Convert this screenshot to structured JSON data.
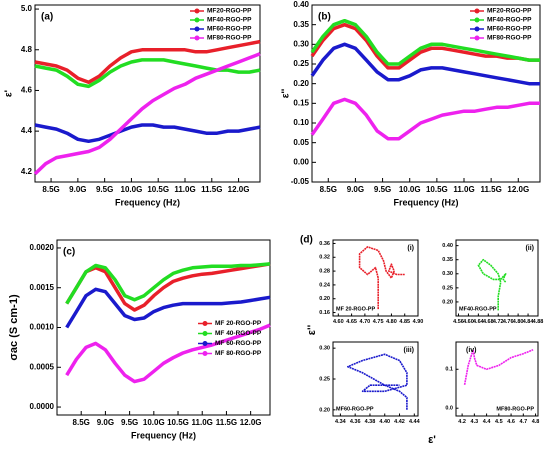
{
  "chart_data": [
    {
      "type": "line",
      "label": "(a)",
      "x_label": "Frequency (Hz)",
      "y_label": "ε'",
      "legend": "upper right",
      "x": [
        8200000000,
        8400000000,
        8600000000,
        8800000000,
        9000000000,
        9200000000,
        9400000000,
        9600000000,
        9800000000,
        10000000000,
        10200000000,
        10400000000,
        10600000000,
        10800000000,
        11000000000,
        11200000000,
        11400000000,
        11600000000,
        11800000000,
        12000000000,
        12200000000,
        12400000000
      ],
      "xlim": [
        8200000000,
        12400000000
      ],
      "xticks": [
        {
          "value": 8500000000,
          "label": "8.5G"
        },
        {
          "value": 9000000000,
          "label": "9.0G"
        },
        {
          "value": 9500000000,
          "label": "9.5G"
        },
        {
          "value": 10000000000,
          "label": "10.0G"
        },
        {
          "value": 10500000000,
          "label": "10.5G"
        },
        {
          "value": 11000000000,
          "label": "11.0G"
        },
        {
          "value": 11500000000,
          "label": "11.5G"
        },
        {
          "value": 12000000000,
          "label": "12.0G"
        }
      ],
      "ylim": [
        4.15,
        5.02
      ],
      "yticks": [
        4.2,
        4.4,
        4.6,
        4.8,
        {
          "value": 5.0,
          "label": "5.0"
        }
      ],
      "series": [
        {
          "name": "MF20-RGO-PP",
          "color": "#e8202a",
          "values": [
            4.74,
            4.73,
            4.72,
            4.7,
            4.66,
            4.64,
            4.67,
            4.72,
            4.76,
            4.79,
            4.8,
            4.8,
            4.8,
            4.8,
            4.8,
            4.79,
            4.79,
            4.8,
            4.81,
            4.82,
            4.83,
            4.84
          ]
        },
        {
          "name": "MF40-RGO-PP",
          "color": "#22dd22",
          "values": [
            4.72,
            4.71,
            4.7,
            4.67,
            4.63,
            4.62,
            4.65,
            4.69,
            4.72,
            4.74,
            4.75,
            4.75,
            4.75,
            4.74,
            4.73,
            4.72,
            4.71,
            4.7,
            4.7,
            4.69,
            4.69,
            4.7
          ]
        },
        {
          "name": "MF60-RGO-PP",
          "color": "#1a1acc",
          "values": [
            4.43,
            4.42,
            4.41,
            4.39,
            4.36,
            4.35,
            4.36,
            4.38,
            4.4,
            4.42,
            4.43,
            4.43,
            4.42,
            4.42,
            4.41,
            4.4,
            4.39,
            4.39,
            4.4,
            4.4,
            4.41,
            4.42
          ]
        },
        {
          "name": "MF80-RGO-PP",
          "color": "#ee22ee",
          "values": [
            4.19,
            4.24,
            4.27,
            4.28,
            4.29,
            4.3,
            4.32,
            4.36,
            4.41,
            4.46,
            4.51,
            4.55,
            4.58,
            4.61,
            4.63,
            4.66,
            4.68,
            4.7,
            4.72,
            4.74,
            4.76,
            4.78
          ]
        }
      ]
    },
    {
      "type": "line",
      "label": "(b)",
      "x_label": "Frequency (Hz)",
      "y_label": "ε''",
      "legend": "upper right",
      "x": [
        8200000000,
        8400000000,
        8600000000,
        8800000000,
        9000000000,
        9200000000,
        9400000000,
        9600000000,
        9800000000,
        10000000000,
        10200000000,
        10400000000,
        10600000000,
        10800000000,
        11000000000,
        11200000000,
        11400000000,
        11600000000,
        11800000000,
        12000000000,
        12200000000,
        12400000000
      ],
      "xlim": [
        8200000000,
        12400000000
      ],
      "xticks": [
        {
          "value": 8500000000,
          "label": "8.5G"
        },
        {
          "value": 9000000000,
          "label": "9.0G"
        },
        {
          "value": 9500000000,
          "label": "9.5G"
        },
        {
          "value": 10000000000,
          "label": "10.0G"
        },
        {
          "value": 10500000000,
          "label": "10.5G"
        },
        {
          "value": 11000000000,
          "label": "11.0G"
        },
        {
          "value": 11500000000,
          "label": "11.5G"
        },
        {
          "value": 12000000000,
          "label": "12.0G"
        }
      ],
      "ylim": [
        -0.05,
        0.4
      ],
      "yticks": [
        -0.05,
        {
          "value": 0,
          "label": "0.00"
        },
        0.05,
        {
          "value": 0.1,
          "label": "0.10"
        },
        0.15,
        {
          "value": 0.2,
          "label": "0.20"
        },
        0.25,
        {
          "value": 0.3,
          "label": "0.30"
        },
        0.35,
        {
          "value": 0.4,
          "label": "0.40"
        }
      ],
      "series": [
        {
          "name": "MF20-RGO-PP",
          "color": "#e8202a",
          "values": [
            0.27,
            0.31,
            0.34,
            0.35,
            0.34,
            0.31,
            0.27,
            0.24,
            0.24,
            0.26,
            0.28,
            0.29,
            0.29,
            0.285,
            0.28,
            0.275,
            0.27,
            0.27,
            0.265,
            0.265,
            0.26,
            0.26
          ]
        },
        {
          "name": "MF40-RGO-PP",
          "color": "#22dd22",
          "values": [
            0.28,
            0.32,
            0.35,
            0.36,
            0.35,
            0.32,
            0.28,
            0.25,
            0.25,
            0.27,
            0.29,
            0.3,
            0.3,
            0.295,
            0.29,
            0.285,
            0.28,
            0.275,
            0.27,
            0.265,
            0.26,
            0.26
          ]
        },
        {
          "name": "MF60-RGO-PP",
          "color": "#1a1acc",
          "values": [
            0.22,
            0.26,
            0.29,
            0.3,
            0.29,
            0.26,
            0.23,
            0.21,
            0.21,
            0.22,
            0.235,
            0.24,
            0.24,
            0.235,
            0.23,
            0.225,
            0.22,
            0.215,
            0.21,
            0.205,
            0.2,
            0.2
          ]
        },
        {
          "name": "MF80-RGO-PP",
          "color": "#ee22ee",
          "values": [
            0.07,
            0.11,
            0.15,
            0.16,
            0.15,
            0.12,
            0.08,
            0.06,
            0.06,
            0.08,
            0.1,
            0.11,
            0.12,
            0.125,
            0.13,
            0.13,
            0.135,
            0.14,
            0.14,
            0.145,
            0.15,
            0.15
          ]
        }
      ]
    },
    {
      "type": "line",
      "label": "(c)",
      "x_label": "Frequency (Hz)",
      "y_label": "σac (S cm-1)",
      "legend": "right",
      "x": [
        8200000000,
        8400000000,
        8600000000,
        8800000000,
        9000000000,
        9200000000,
        9400000000,
        9600000000,
        9800000000,
        10000000000,
        10200000000,
        10400000000,
        10600000000,
        10800000000,
        11000000000,
        11200000000,
        11400000000,
        11600000000,
        11800000000,
        12000000000,
        12200000000,
        12400000000
      ],
      "xlim": [
        8000000000,
        12400000000
      ],
      "xticks": [
        {
          "value": 8500000000,
          "label": "8.5G"
        },
        {
          "value": 9000000000,
          "label": "9.0G"
        },
        {
          "value": 9500000000,
          "label": "9.5G"
        },
        {
          "value": 10000000000,
          "label": "10.0G"
        },
        {
          "value": 10500000000,
          "label": "10.5G"
        },
        {
          "value": 11000000000,
          "label": "11.0G"
        },
        {
          "value": 11500000000,
          "label": "11.5G"
        },
        {
          "value": 12000000000,
          "label": "12.0G"
        }
      ],
      "ylim": [
        -0.0001,
        0.0021
      ],
      "yticks": [
        {
          "value": 0,
          "label": "0.0000"
        },
        {
          "value": 0.0005,
          "label": "0.0005"
        },
        {
          "value": 0.001,
          "label": "0.0010"
        },
        {
          "value": 0.0015,
          "label": "0.0015"
        },
        {
          "value": 0.002,
          "label": "0.0020"
        }
      ],
      "series": [
        {
          "name": "MF 20-RGO-PP",
          "color": "#e8202a",
          "values": [
            0.0013,
            0.0015,
            0.0017,
            0.00175,
            0.0017,
            0.0015,
            0.0013,
            0.00122,
            0.00128,
            0.0014,
            0.0015,
            0.00158,
            0.00162,
            0.00165,
            0.00167,
            0.00168,
            0.0017,
            0.00172,
            0.00174,
            0.00176,
            0.00178,
            0.0018
          ]
        },
        {
          "name": "MF 40-RGO-PP",
          "color": "#22dd22",
          "values": [
            0.0013,
            0.0015,
            0.0017,
            0.00178,
            0.00175,
            0.0016,
            0.0014,
            0.00135,
            0.0014,
            0.0015,
            0.0016,
            0.00168,
            0.00172,
            0.00175,
            0.00176,
            0.00177,
            0.00177,
            0.00177,
            0.00178,
            0.00178,
            0.00179,
            0.0018
          ]
        },
        {
          "name": "MF 60-RGO-PP",
          "color": "#1a1acc",
          "values": [
            0.001,
            0.0012,
            0.0014,
            0.00148,
            0.00145,
            0.0013,
            0.00115,
            0.0011,
            0.00112,
            0.0012,
            0.00125,
            0.00128,
            0.0013,
            0.0013,
            0.0013,
            0.0013,
            0.0013,
            0.00131,
            0.00132,
            0.00134,
            0.00136,
            0.00138
          ]
        },
        {
          "name": "MF 80-RGO-PP",
          "color": "#ee22ee",
          "values": [
            0.0004,
            0.0006,
            0.00075,
            0.0008,
            0.00072,
            0.00055,
            0.0004,
            0.00032,
            0.00035,
            0.00045,
            0.00055,
            0.00062,
            0.00068,
            0.00072,
            0.00075,
            0.00078,
            0.00082,
            0.00086,
            0.0009,
            0.00094,
            0.00098,
            0.00103
          ]
        }
      ]
    },
    {
      "type": "line",
      "label": "(i)",
      "legend": "lower left",
      "x": [
        4.75,
        4.75,
        4.75,
        4.74,
        4.71,
        4.68,
        4.68,
        4.71,
        4.75,
        4.77,
        4.78,
        4.8,
        4.81,
        4.8,
        4.79,
        4.82,
        4.85
      ],
      "xlim": [
        4.58,
        4.9
      ],
      "xticks": [
        {
          "value": 4.6,
          "label": "4.60"
        },
        4.65,
        {
          "value": 4.7,
          "label": "4.70"
        },
        4.75,
        {
          "value": 4.8,
          "label": "4.80"
        },
        4.85,
        {
          "value": 4.9,
          "label": "4.90"
        }
      ],
      "ylim": [
        0.15,
        0.37
      ],
      "yticks": [
        0.16,
        {
          "value": 0.2,
          "label": "0.20"
        },
        0.24,
        0.28,
        0.32,
        0.36
      ],
      "series": [
        {
          "name": "MF 20-RGO-PP",
          "color": "#e8202a",
          "values": [
            0.17,
            0.22,
            0.26,
            0.29,
            0.27,
            0.29,
            0.33,
            0.35,
            0.34,
            0.31,
            0.28,
            0.26,
            0.28,
            0.3,
            0.28,
            0.27,
            0.27
          ]
        }
      ]
    },
    {
      "type": "line",
      "label": "(ii)",
      "legend": "lower left",
      "x": [
        4.72,
        4.72,
        4.73,
        4.72,
        4.69,
        4.66,
        4.64,
        4.66,
        4.7,
        4.73,
        4.75,
        4.74,
        4.75
      ],
      "xlim": [
        4.55,
        4.88
      ],
      "xticks": [
        4.56,
        {
          "value": 4.6,
          "label": "4.60"
        },
        4.64,
        4.68,
        4.72,
        4.76,
        {
          "value": 4.8,
          "label": "4.80"
        },
        4.84,
        4.88
      ],
      "ylim": [
        0.15,
        0.42
      ],
      "yticks": [
        {
          "value": 0.2,
          "label": "0.20"
        },
        0.25,
        {
          "value": 0.3,
          "label": "0.30"
        },
        0.35,
        {
          "value": 0.4,
          "label": "0.40"
        }
      ],
      "series": [
        {
          "name": "MF40-RGO-PP",
          "color": "#22dd22",
          "values": [
            0.17,
            0.22,
            0.27,
            0.3,
            0.33,
            0.35,
            0.33,
            0.3,
            0.28,
            0.28,
            0.3,
            0.28,
            0.27
          ]
        }
      ]
    },
    {
      "type": "line",
      "label": "(iii)",
      "legend": "lower left",
      "x": [
        4.43,
        4.43,
        4.42,
        4.4,
        4.37,
        4.35,
        4.37,
        4.4,
        4.42,
        4.43,
        4.43,
        4.4,
        4.37,
        4.38,
        4.42
      ],
      "xlim": [
        4.33,
        4.445
      ],
      "xticks": [
        4.34,
        4.36,
        4.38,
        {
          "value": 4.4,
          "label": "4.40"
        },
        4.42,
        4.44
      ],
      "ylim": [
        0.19,
        0.31
      ],
      "yticks": [
        {
          "value": 0.2,
          "label": "0.20"
        },
        0.25,
        {
          "value": 0.3,
          "label": "0.30"
        }
      ],
      "series": [
        {
          "name": "MF60-RGO-PP",
          "color": "#1a1acc",
          "values": [
            0.2,
            0.22,
            0.23,
            0.24,
            0.26,
            0.27,
            0.28,
            0.29,
            0.28,
            0.26,
            0.24,
            0.23,
            0.23,
            0.24,
            0.24
          ]
        }
      ]
    },
    {
      "type": "line",
      "label": "(iv)",
      "legend": "lower right",
      "x": [
        4.22,
        4.25,
        4.29,
        4.3,
        4.32,
        4.4,
        4.5,
        4.6,
        4.7,
        4.78
      ],
      "xlim": [
        4.15,
        4.82
      ],
      "xticks": [
        4.2,
        4.3,
        4.4,
        4.5,
        4.6,
        4.7,
        4.8
      ],
      "ylim": [
        -0.02,
        0.17
      ],
      "yticks": [
        {
          "value": 0,
          "label": "0.0"
        },
        0.1
      ],
      "series": [
        {
          "name": "MF80-RGO-PP",
          "color": "#ee22ee",
          "values": [
            0.06,
            0.11,
            0.15,
            0.13,
            0.11,
            0.1,
            0.11,
            0.13,
            0.14,
            0.15
          ]
        }
      ]
    }
  ],
  "panel_d": {
    "label": "(d)",
    "x_label": "ε'",
    "y_label": "ε''"
  }
}
